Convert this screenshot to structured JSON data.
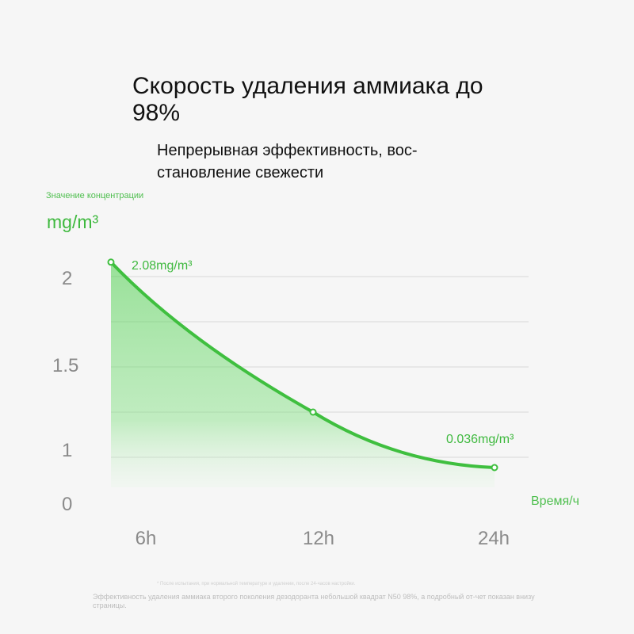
{
  "header": {
    "title": "Скорость удаления аммиака до 98%",
    "subtitle": "Непрерывная эффективность, вос-становление свежести"
  },
  "chart_data": {
    "type": "area",
    "ylabel_text": "Значение концентрации",
    "y_unit": "mg/m³",
    "xlabel": "Время/ч",
    "y_ticks": [
      "2",
      "1.5",
      "1",
      "0"
    ],
    "categories": [
      "6h",
      "12h",
      "24h"
    ],
    "x": [
      "6h",
      "12h",
      "24h"
    ],
    "values": [
      2.08,
      1.25,
      0.036
    ],
    "annotations": [
      {
        "label": "2.08mg/m³",
        "point": 0
      },
      {
        "label": "0.036mg/m³",
        "point": 2
      }
    ],
    "grid": true,
    "color": "#3fbf3f"
  },
  "footnote": "* После испытания, при нормальной температуре и удалении, после 24-часов настройки.",
  "disclaimer": "Эффективность удаления аммиака второго поколения дезодоранта небольшой квадрат N50 98%, а подробный от-чет показан внизу страницы."
}
